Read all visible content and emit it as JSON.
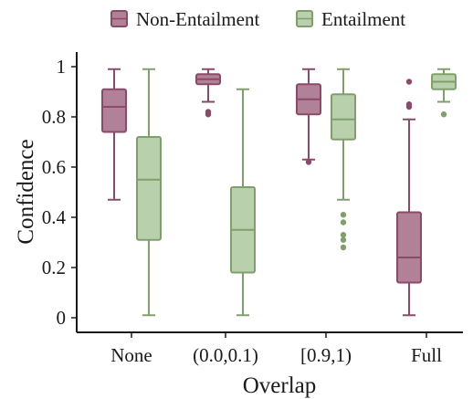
{
  "chart_data": {
    "type": "box",
    "xlabel": "Overlap",
    "ylabel": "Confidence",
    "ylim": [
      0,
      1
    ],
    "yticks": [
      0,
      0.2,
      0.4,
      0.6,
      0.8,
      1
    ],
    "ytick_labels": [
      "0",
      "0.2",
      "0.4",
      "0.6",
      "0.8",
      "1"
    ],
    "categories": [
      "None",
      "(0.0,0.1)",
      "[0.9,1)",
      "Full"
    ],
    "legend_position": "top",
    "grid": false,
    "series": [
      {
        "name": "Non-Entailment",
        "color": "#b08197",
        "edge_color": "#8a4a68",
        "boxes": [
          {
            "whisker_low": 0.47,
            "q1": 0.74,
            "median": 0.84,
            "q3": 0.91,
            "whisker_high": 0.99,
            "outliers": []
          },
          {
            "whisker_low": 0.86,
            "q1": 0.93,
            "median": 0.95,
            "q3": 0.97,
            "whisker_high": 0.99,
            "outliers": [
              0.81,
              0.82
            ]
          },
          {
            "whisker_low": 0.63,
            "q1": 0.81,
            "median": 0.87,
            "q3": 0.93,
            "whisker_high": 0.99,
            "outliers": [
              0.62
            ]
          },
          {
            "whisker_low": 0.01,
            "q1": 0.14,
            "median": 0.24,
            "q3": 0.42,
            "whisker_high": 0.79,
            "outliers": [
              0.84,
              0.85,
              0.94
            ]
          }
        ]
      },
      {
        "name": "Entailment",
        "color": "#b9d0ad",
        "edge_color": "#7fa06c",
        "boxes": [
          {
            "whisker_low": 0.01,
            "q1": 0.31,
            "median": 0.55,
            "q3": 0.72,
            "whisker_high": 0.99,
            "outliers": []
          },
          {
            "whisker_low": 0.01,
            "q1": 0.18,
            "median": 0.35,
            "q3": 0.52,
            "whisker_high": 0.91,
            "outliers": []
          },
          {
            "whisker_low": 0.47,
            "q1": 0.71,
            "median": 0.79,
            "q3": 0.89,
            "whisker_high": 0.99,
            "outliers": [
              0.41,
              0.38,
              0.33,
              0.31,
              0.28
            ]
          },
          {
            "whisker_low": 0.86,
            "q1": 0.91,
            "median": 0.94,
            "q3": 0.97,
            "whisker_high": 0.99,
            "outliers": [
              0.81
            ]
          }
        ]
      }
    ]
  }
}
